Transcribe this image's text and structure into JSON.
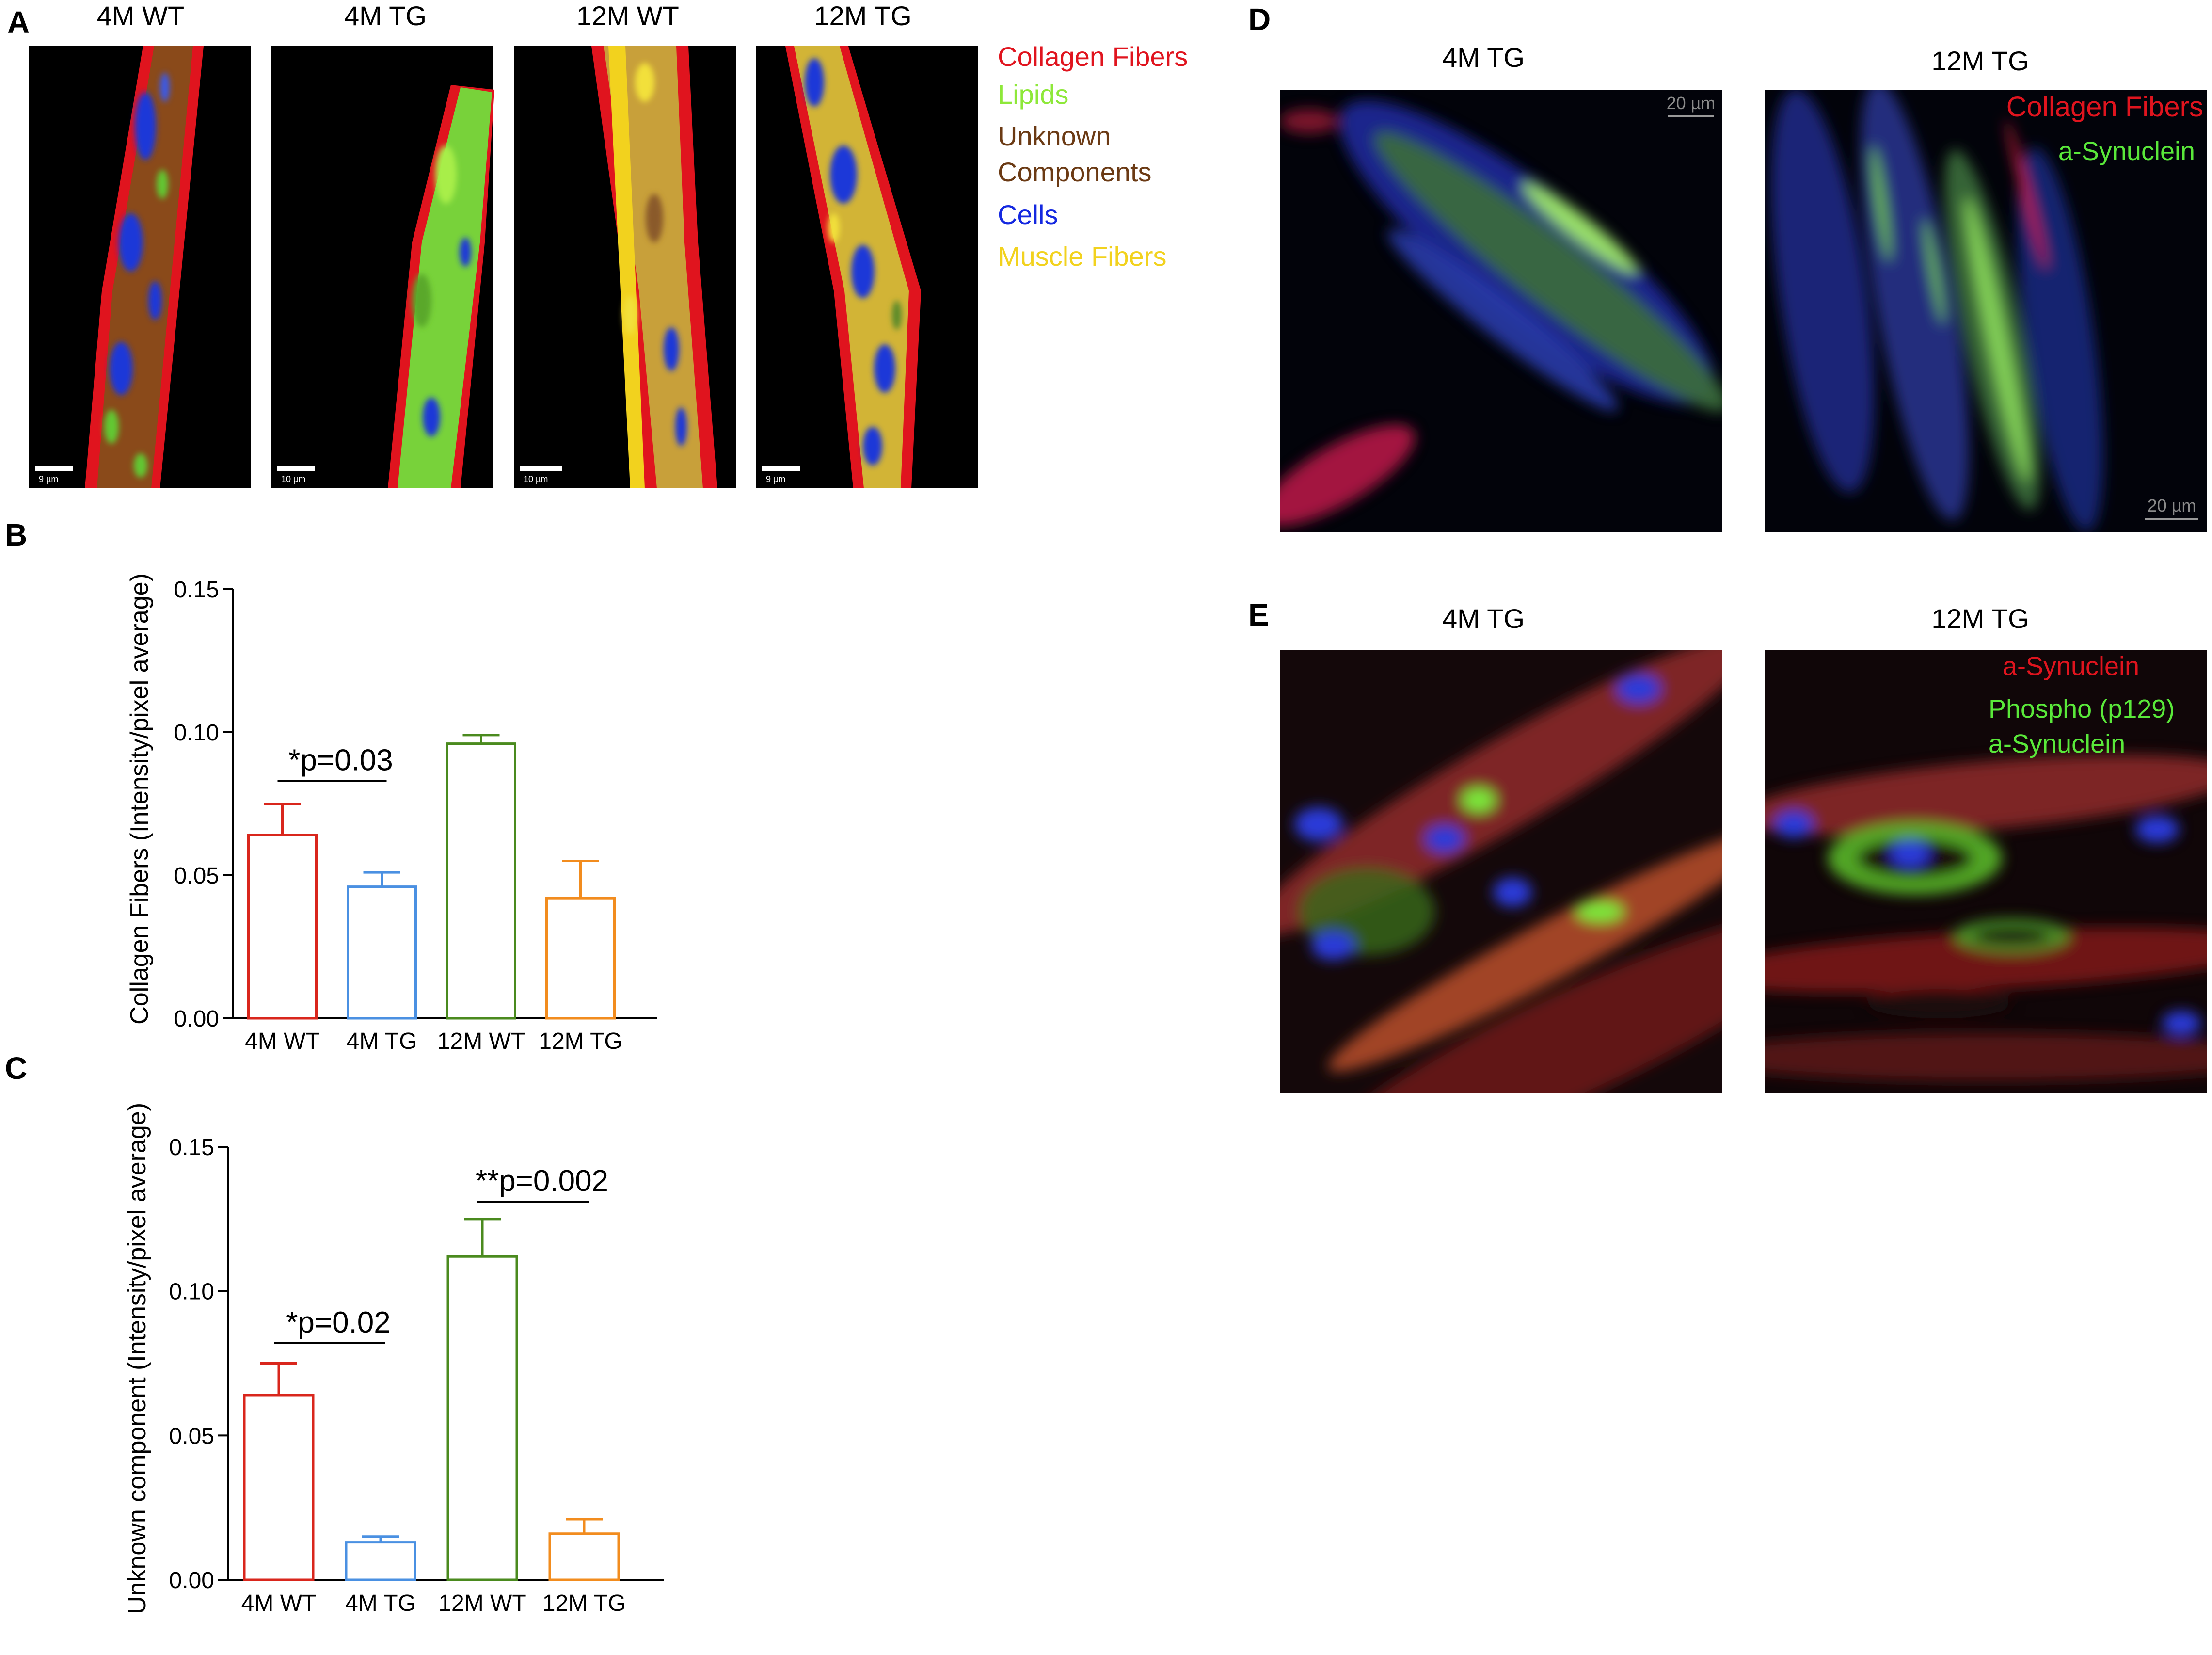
{
  "panels": {
    "A": {
      "letter": "A",
      "titles": [
        "4M WT",
        "4M TG",
        "12M WT",
        "12M TG"
      ],
      "scalebars": [
        "9 µm",
        "10 µm",
        "10 µm",
        "9 µm"
      ],
      "legend": [
        {
          "label": "Collagen Fibers",
          "color": "#e0141e"
        },
        {
          "label": "Lipids",
          "color": "#8ee83a"
        },
        {
          "label": "Unknown",
          "color": "#6b3a14"
        },
        {
          "label": "Components",
          "color": "#6b3a14"
        },
        {
          "label": "Cells",
          "color": "#1428e0"
        },
        {
          "label": "Muscle Fibers",
          "color": "#f2d21e"
        }
      ]
    },
    "B": {
      "letter": "B"
    },
    "C": {
      "letter": "C"
    },
    "D": {
      "letter": "D",
      "titles": [
        "4M TG",
        "12M TG"
      ],
      "scalebar": "20 µm",
      "legend": [
        {
          "label": "Collagen Fibers",
          "color": "#e0141e"
        },
        {
          "label": "a-Synuclein",
          "color": "#5ae83a"
        }
      ]
    },
    "E": {
      "letter": "E",
      "titles": [
        "4M TG",
        "12M TG"
      ],
      "legend": [
        {
          "label": "a-Synuclein",
          "color": "#e0141e"
        },
        {
          "label": "Phospho (p129)",
          "color": "#5ae83a"
        },
        {
          "label": "a-Synuclein",
          "color": "#5ae83a"
        }
      ]
    }
  },
  "chart_data": [
    {
      "panel": "B",
      "type": "bar",
      "categories": [
        "4M WT",
        "4M TG",
        "12M WT",
        "12M TG"
      ],
      "values": [
        0.064,
        0.046,
        0.096,
        0.042
      ],
      "errors": [
        0.011,
        0.005,
        0.003,
        0.013
      ],
      "colors": [
        "#d9261c",
        "#4a90e2",
        "#4a8a1e",
        "#f28c1e"
      ],
      "ylabel": "Collagen Fibers (Intensity/pixel average)",
      "ylim": [
        0,
        0.15
      ],
      "yticks": [
        "0.00",
        "0.05",
        "0.10",
        "0.15"
      ],
      "annotations": [
        {
          "text": "*p=0.03",
          "from": 0,
          "to": 1,
          "y": 0.083
        }
      ]
    },
    {
      "panel": "C",
      "type": "bar",
      "categories": [
        "4M WT",
        "4M TG",
        "12M WT",
        "12M TG"
      ],
      "values": [
        0.064,
        0.013,
        0.112,
        0.016
      ],
      "errors": [
        0.011,
        0.002,
        0.013,
        0.005
      ],
      "colors": [
        "#d9261c",
        "#4a90e2",
        "#4a8a1e",
        "#f28c1e"
      ],
      "ylabel": "Unknown component (Intensity/pixel average)",
      "ylim": [
        0,
        0.15
      ],
      "yticks": [
        "0.00",
        "0.05",
        "0.10",
        "0.15"
      ],
      "annotations": [
        {
          "text": "*p=0.02",
          "from": 0,
          "to": 1,
          "y": 0.082
        },
        {
          "text": "**p=0.002",
          "from": 2,
          "to": 3,
          "y": 0.131
        }
      ]
    }
  ]
}
